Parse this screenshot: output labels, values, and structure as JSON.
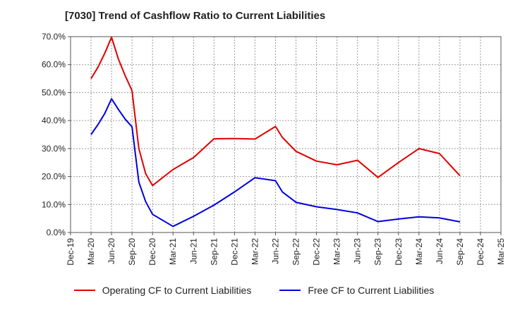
{
  "title": "[7030]  Trend of Cashflow Ratio to Current Liabilities",
  "colors": {
    "operating": "#e00000",
    "free": "#0000dd",
    "grid": "#999999",
    "axis": "#555555"
  },
  "chart_data": {
    "type": "line",
    "title": "[7030]  Trend of Cashflow Ratio to Current Liabilities",
    "xlabel": "",
    "ylabel": "",
    "x_range": [
      "2019-12",
      "2025-03"
    ],
    "ylim": [
      0,
      70
    ],
    "y_ticks": [
      "0.0%",
      "10.0%",
      "20.0%",
      "30.0%",
      "40.0%",
      "50.0%",
      "60.0%",
      "70.0%"
    ],
    "x_ticks": [
      "Dec-19",
      "Mar-20",
      "Jun-20",
      "Sep-20",
      "Dec-20",
      "Mar-21",
      "Jun-21",
      "Sep-21",
      "Dec-21",
      "Mar-22",
      "Jun-22",
      "Sep-22",
      "Dec-22",
      "Mar-23",
      "Jun-23",
      "Sep-23",
      "Dec-23",
      "Mar-24",
      "Jun-24",
      "Sep-24",
      "Dec-24",
      "Mar-25"
    ],
    "grid": true,
    "legend_position": "bottom",
    "series": [
      {
        "name": "Operating CF to Current Liabilities",
        "color": "#e00000",
        "points": [
          [
            "2020-03",
            55.0
          ],
          [
            "2020-04",
            59.0
          ],
          [
            "2020-05",
            64.0
          ],
          [
            "2020-06",
            69.8
          ],
          [
            "2020-07",
            62.0
          ],
          [
            "2020-08",
            56.0
          ],
          [
            "2020-09",
            50.7
          ],
          [
            "2020-10",
            30.0
          ],
          [
            "2020-11",
            21.0
          ],
          [
            "2020-12",
            16.8
          ],
          [
            "2021-03",
            22.5
          ],
          [
            "2021-06",
            26.8
          ],
          [
            "2021-09",
            33.5
          ],
          [
            "2021-12",
            33.6
          ],
          [
            "2022-03",
            33.4
          ],
          [
            "2022-06",
            37.9
          ],
          [
            "2022-07",
            34.0
          ],
          [
            "2022-09",
            29.0
          ],
          [
            "2022-12",
            25.5
          ],
          [
            "2023-03",
            24.2
          ],
          [
            "2023-06",
            25.8
          ],
          [
            "2023-09",
            19.7
          ],
          [
            "2023-12",
            25.0
          ],
          [
            "2024-03",
            30.0
          ],
          [
            "2024-06",
            28.2
          ],
          [
            "2024-09",
            20.3
          ]
        ]
      },
      {
        "name": "Free CF to Current Liabilities",
        "color": "#0000dd",
        "points": [
          [
            "2020-03",
            35.0
          ],
          [
            "2020-04",
            38.5
          ],
          [
            "2020-05",
            42.5
          ],
          [
            "2020-06",
            47.8
          ],
          [
            "2020-07",
            44.0
          ],
          [
            "2020-08",
            40.5
          ],
          [
            "2020-09",
            37.8
          ],
          [
            "2020-10",
            18.0
          ],
          [
            "2020-11",
            11.0
          ],
          [
            "2020-12",
            6.5
          ],
          [
            "2021-03",
            2.2
          ],
          [
            "2021-06",
            5.8
          ],
          [
            "2021-09",
            9.8
          ],
          [
            "2021-12",
            14.5
          ],
          [
            "2022-03",
            19.6
          ],
          [
            "2022-06",
            18.5
          ],
          [
            "2022-07",
            14.5
          ],
          [
            "2022-09",
            10.8
          ],
          [
            "2022-12",
            9.2
          ],
          [
            "2023-03",
            8.2
          ],
          [
            "2023-06",
            7.0
          ],
          [
            "2023-09",
            3.9
          ],
          [
            "2023-12",
            4.8
          ],
          [
            "2024-03",
            5.6
          ],
          [
            "2024-06",
            5.2
          ],
          [
            "2024-09",
            3.8
          ]
        ]
      }
    ]
  }
}
